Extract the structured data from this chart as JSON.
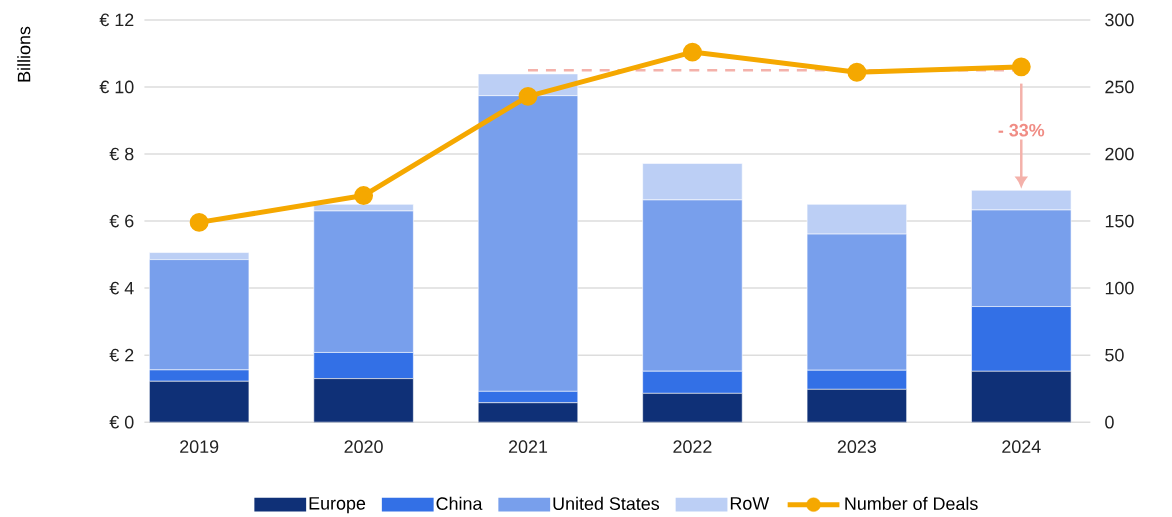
{
  "chart_data": {
    "type": "bar",
    "stacked": true,
    "ylabel": "Billions",
    "categories": [
      "2019",
      "2020",
      "2021",
      "2022",
      "2023",
      "2024"
    ],
    "series": [
      {
        "name": "Europe",
        "color": "#0f3077",
        "values": [
          1.22,
          1.3,
          0.58,
          0.86,
          0.98,
          1.52
        ]
      },
      {
        "name": "China",
        "color": "#3370e6",
        "values": [
          0.34,
          0.78,
          0.34,
          0.66,
          0.57,
          1.93
        ]
      },
      {
        "name": "United States",
        "color": "#789fec",
        "values": [
          3.29,
          4.22,
          8.82,
          5.11,
          4.06,
          2.88
        ]
      },
      {
        "name": "RoW",
        "color": "#bccff5",
        "values": [
          0.21,
          0.2,
          0.65,
          1.09,
          0.89,
          0.59
        ]
      },
      {
        "name": "Number of Deals",
        "type": "line",
        "axis": "y2",
        "marker": "circle",
        "color": "#f5a800",
        "values": [
          149,
          169,
          243,
          276,
          261,
          265
        ]
      },
      {
        "type": "line",
        "line_style": "dashed",
        "color": "#f4b1aa",
        "values": [
          null,
          null,
          10.5,
          10.5,
          10.5,
          10.5
        ]
      }
    ],
    "ylim": [
      0,
      12
    ],
    "yticks": [
      {
        "value": 0,
        "label": "€ 0"
      },
      {
        "value": 2,
        "label": "€ 2"
      },
      {
        "value": 4,
        "label": "€ 4"
      },
      {
        "value": 6,
        "label": "€ 6"
      },
      {
        "value": 8,
        "label": "€ 8"
      },
      {
        "value": 10,
        "label": "€ 10"
      },
      {
        "value": 12,
        "label": "€ 12"
      }
    ],
    "y2lim": [
      0,
      300
    ],
    "y2ticks": [
      0,
      50,
      100,
      150,
      200,
      250,
      300
    ],
    "annotations": [
      "- 33%"
    ],
    "grid": "y",
    "legend": "bottom"
  }
}
